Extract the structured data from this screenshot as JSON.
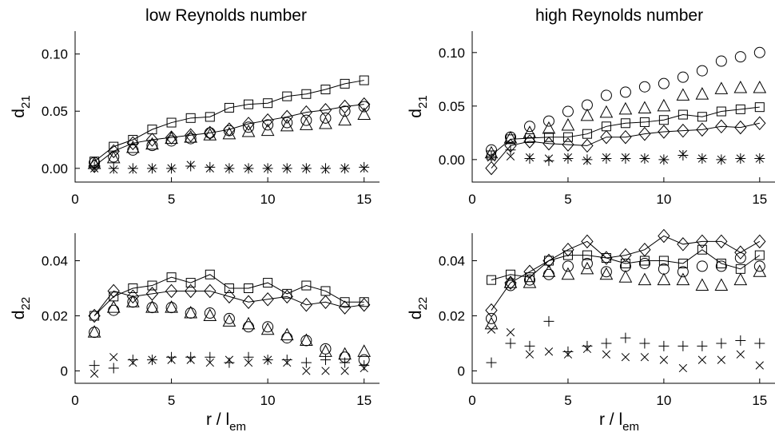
{
  "figure": {
    "titles": [
      "low Reynolds number",
      "high Reynolds number"
    ],
    "xlabel": {
      "main": "r / l",
      "sub": "em"
    }
  },
  "chart_data": [
    {
      "type": "scatter",
      "panel": "low-re-d21",
      "title": "low Reynolds number",
      "ylabel": {
        "main": "d",
        "sub": "21"
      },
      "xlim": [
        0,
        15.8
      ],
      "ylim": [
        -0.012,
        0.12
      ],
      "xticks": [
        0,
        5,
        10,
        15
      ],
      "xtick_labels": [
        "0",
        "5",
        "10",
        "15"
      ],
      "yticks": [
        0,
        0.05,
        0.1
      ],
      "ytick_labels": [
        "0.00",
        "0.05",
        "0.10"
      ],
      "x": [
        1,
        2,
        3,
        4,
        5,
        6,
        7,
        8,
        9,
        10,
        11,
        12,
        13,
        14,
        15
      ],
      "series": [
        {
          "marker": "square",
          "line": true,
          "values": [
            0.006,
            0.019,
            0.025,
            0.034,
            0.04,
            0.044,
            0.045,
            0.053,
            0.056,
            0.057,
            0.063,
            0.065,
            0.069,
            0.074,
            0.077
          ]
        },
        {
          "marker": "diamond",
          "line": true,
          "values": [
            0.002,
            0.015,
            0.022,
            0.025,
            0.027,
            0.029,
            0.031,
            0.034,
            0.039,
            0.042,
            0.045,
            0.049,
            0.051,
            0.054,
            0.056
          ]
        },
        {
          "marker": "circle",
          "line": false,
          "values": [
            0.005,
            0.01,
            0.016,
            0.02,
            0.024,
            0.026,
            0.031,
            0.033,
            0.036,
            0.038,
            0.04,
            0.042,
            0.044,
            0.05,
            0.054
          ]
        },
        {
          "marker": "triangle",
          "line": false,
          "values": [
            0.004,
            0.009,
            0.018,
            0.021,
            0.026,
            0.027,
            0.029,
            0.03,
            0.032,
            0.033,
            0.037,
            0.038,
            0.039,
            0.042,
            0.047
          ]
        },
        {
          "marker": "plus",
          "line": false,
          "values": [
            0.001,
            0.0,
            0.0,
            0.0,
            0.0,
            0.002,
            0.001,
            0.0,
            0.0,
            0.0,
            0.0,
            0.0,
            0.0,
            0.0,
            0.001
          ]
        },
        {
          "marker": "cross",
          "line": false,
          "values": [
            0.0,
            -0.001,
            -0.001,
            0.0,
            0.0,
            0.003,
            0.0,
            0.0,
            0.0,
            0.0,
            0.0,
            0.0,
            -0.001,
            0.0,
            0.0
          ]
        }
      ]
    },
    {
      "type": "scatter",
      "panel": "high-re-d21",
      "title": "high Reynolds number",
      "ylabel": {
        "main": "d",
        "sub": "21"
      },
      "xlim": [
        0,
        15.8
      ],
      "ylim": [
        -0.021,
        0.12
      ],
      "xticks": [
        0,
        5,
        10,
        15
      ],
      "xtick_labels": [
        "0",
        "5",
        "10",
        "15"
      ],
      "yticks": [
        0,
        0.05,
        0.1
      ],
      "ytick_labels": [
        "0.00",
        "0.05",
        "0.10"
      ],
      "x": [
        1,
        2,
        3,
        4,
        5,
        6,
        7,
        8,
        9,
        10,
        11,
        12,
        13,
        14,
        15
      ],
      "series": [
        {
          "marker": "square",
          "line": true,
          "values": [
            0.004,
            0.019,
            0.02,
            0.021,
            0.021,
            0.024,
            0.031,
            0.034,
            0.035,
            0.037,
            0.042,
            0.04,
            0.045,
            0.047,
            0.049
          ]
        },
        {
          "marker": "diamond",
          "line": true,
          "values": [
            -0.008,
            0.013,
            0.017,
            0.015,
            0.014,
            0.013,
            0.021,
            0.021,
            0.024,
            0.026,
            0.027,
            0.028,
            0.031,
            0.03,
            0.034
          ]
        },
        {
          "marker": "circle",
          "line": false,
          "values": [
            0.009,
            0.021,
            0.031,
            0.036,
            0.045,
            0.051,
            0.06,
            0.063,
            0.068,
            0.071,
            0.077,
            0.083,
            0.092,
            0.096,
            0.1
          ]
        },
        {
          "marker": "triangle",
          "line": false,
          "values": [
            0.006,
            0.02,
            0.025,
            0.029,
            0.032,
            0.041,
            0.044,
            0.047,
            0.048,
            0.05,
            0.06,
            0.061,
            0.066,
            0.067,
            0.067
          ]
        },
        {
          "marker": "plus",
          "line": false,
          "values": [
            0.003,
            0.009,
            0.001,
            -0.001,
            0.001,
            0.0,
            0.001,
            0.001,
            0.001,
            0.0,
            0.004,
            0.001,
            0.0,
            0.001,
            0.001
          ]
        },
        {
          "marker": "cross",
          "line": false,
          "values": [
            0.002,
            0.003,
            0.002,
            0.001,
            0.002,
            -0.001,
            0.002,
            0.002,
            0.001,
            0.0,
            0.005,
            0.001,
            0.0,
            0.001,
            0.001
          ]
        }
      ]
    },
    {
      "type": "scatter",
      "panel": "low-re-d22",
      "ylabel": {
        "main": "d",
        "sub": "22"
      },
      "xlim": [
        0,
        15.8
      ],
      "ylim": [
        -0.0045,
        0.05
      ],
      "xticks": [
        0,
        5,
        10,
        15
      ],
      "xtick_labels": [
        "0",
        "5",
        "10",
        "15"
      ],
      "yticks": [
        0,
        0.02,
        0.04
      ],
      "ytick_labels": [
        "0",
        "0.02",
        "0.04"
      ],
      "x": [
        1,
        2,
        3,
        4,
        5,
        6,
        7,
        8,
        9,
        10,
        11,
        12,
        13,
        14,
        15
      ],
      "series": [
        {
          "marker": "square",
          "line": true,
          "values": [
            0.02,
            0.027,
            0.03,
            0.031,
            0.034,
            0.032,
            0.035,
            0.03,
            0.03,
            0.032,
            0.028,
            0.031,
            0.029,
            0.025,
            0.025
          ]
        },
        {
          "marker": "diamond",
          "line": true,
          "values": [
            0.02,
            0.029,
            0.027,
            0.028,
            0.029,
            0.029,
            0.029,
            0.027,
            0.025,
            0.026,
            0.027,
            0.024,
            0.025,
            0.023,
            0.024
          ]
        },
        {
          "marker": "circle",
          "line": false,
          "values": [
            0.014,
            0.022,
            0.025,
            0.023,
            0.023,
            0.021,
            0.021,
            0.019,
            0.016,
            0.016,
            0.012,
            0.011,
            0.008,
            0.005,
            0.004
          ]
        },
        {
          "marker": "triangle",
          "line": false,
          "values": [
            0.014,
            0.023,
            0.025,
            0.023,
            0.023,
            0.021,
            0.02,
            0.018,
            0.017,
            0.015,
            0.013,
            0.011,
            0.007,
            0.006,
            0.007
          ]
        },
        {
          "marker": "plus",
          "line": false,
          "values": [
            0.002,
            0.001,
            0.004,
            0.004,
            0.005,
            0.005,
            0.005,
            0.003,
            0.005,
            0.004,
            0.004,
            0.003,
            0.004,
            0.003,
            0.002
          ]
        },
        {
          "marker": "cross",
          "line": false,
          "values": [
            -0.001,
            0.005,
            0.003,
            0.004,
            0.004,
            0.004,
            0.003,
            0.004,
            0.003,
            0.004,
            0.003,
            0.0,
            0.0,
            0.0,
            0.001
          ]
        }
      ]
    },
    {
      "type": "scatter",
      "panel": "high-re-d22",
      "ylabel": {
        "main": "d",
        "sub": "22"
      },
      "xlim": [
        0,
        15.8
      ],
      "ylim": [
        -0.0045,
        0.05
      ],
      "xticks": [
        0,
        5,
        10,
        15
      ],
      "xtick_labels": [
        "0",
        "5",
        "10",
        "15"
      ],
      "yticks": [
        0,
        0.02,
        0.04
      ],
      "ytick_labels": [
        "0",
        "0.02",
        "0.04"
      ],
      "x": [
        1,
        2,
        3,
        4,
        5,
        6,
        7,
        8,
        9,
        10,
        11,
        12,
        13,
        14,
        15
      ],
      "series": [
        {
          "marker": "square",
          "line": true,
          "values": [
            0.033,
            0.035,
            0.034,
            0.04,
            0.042,
            0.042,
            0.041,
            0.039,
            0.04,
            0.04,
            0.039,
            0.044,
            0.039,
            0.037,
            0.042
          ]
        },
        {
          "marker": "diamond",
          "line": true,
          "values": [
            0.022,
            0.032,
            0.036,
            0.04,
            0.044,
            0.047,
            0.041,
            0.042,
            0.044,
            0.049,
            0.046,
            0.047,
            0.047,
            0.043,
            0.047
          ]
        },
        {
          "marker": "circle",
          "line": false,
          "values": [
            0.019,
            0.031,
            0.033,
            0.035,
            0.038,
            0.039,
            0.036,
            0.038,
            0.039,
            0.037,
            0.036,
            0.038,
            0.038,
            0.041,
            0.038
          ]
        },
        {
          "marker": "triangle",
          "line": false,
          "values": [
            0.017,
            0.032,
            0.032,
            0.036,
            0.035,
            0.037,
            0.035,
            0.034,
            0.033,
            0.033,
            0.033,
            0.031,
            0.031,
            0.033,
            0.036
          ]
        },
        {
          "marker": "plus",
          "line": false,
          "values": [
            0.003,
            0.01,
            0.009,
            0.018,
            0.007,
            0.009,
            0.01,
            0.012,
            0.01,
            0.009,
            0.009,
            0.009,
            0.01,
            0.011,
            0.01
          ]
        },
        {
          "marker": "cross",
          "line": false,
          "values": [
            0.015,
            0.014,
            0.006,
            0.007,
            0.006,
            0.008,
            0.006,
            0.005,
            0.005,
            0.004,
            0.001,
            0.004,
            0.004,
            0.006,
            0.002
          ]
        }
      ]
    }
  ]
}
